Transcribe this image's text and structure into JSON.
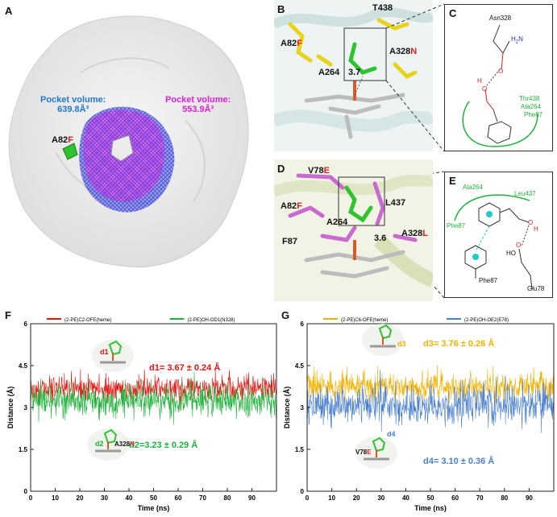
{
  "panels": {
    "A": {
      "label": "A",
      "pocket_blue": {
        "title": "Pocket volume:",
        "value": "639.8Å³",
        "color": "#1f78d1"
      },
      "pocket_magenta": {
        "title": "Pocket volume:",
        "value": "553.9Å³",
        "color": "#e020d8"
      },
      "mutation": {
        "base": "A82",
        "mut": "F"
      }
    },
    "B": {
      "label": "B",
      "residues": [
        {
          "base": "A82",
          "mut": "F"
        },
        {
          "base": "T438",
          "mut": ""
        },
        {
          "base": "A328",
          "mut": "N"
        },
        {
          "base": "A264",
          "mut": ""
        }
      ],
      "distance": "3.7"
    },
    "C": {
      "label": "C",
      "labels": {
        "asn": "Asn328",
        "nh2": "H",
        "nh2_sub": "2",
        "nh2_n": "N",
        "o": "O",
        "oh_o": "O",
        "oh_h": "H",
        "thr": "Thr438",
        "ala": "Ala264",
        "phe": "Phe87"
      }
    },
    "D": {
      "label": "D",
      "residues": [
        {
          "base": "V78",
          "mut": "E"
        },
        {
          "base": "A82",
          "mut": "F"
        },
        {
          "base": "A264",
          "mut": ""
        },
        {
          "base": "L437",
          "mut": ""
        },
        {
          "base": "F87",
          "mut": ""
        },
        {
          "base": "A328",
          "mut": "L"
        }
      ],
      "distance": "3.6"
    },
    "E": {
      "label": "E",
      "labels": {
        "ala": "Ala264",
        "leu": "Leu437",
        "phe_top": "Phe87",
        "phe_bot": "Phe87",
        "glu": "Glu78",
        "ho": "HO",
        "o1": "O",
        "o2": "O",
        "h": "H"
      }
    }
  },
  "chart_data": [
    {
      "panel": "F",
      "type": "line",
      "ylabel": "Distance (Å)",
      "xlabel": "Time (ns)",
      "xlim": [
        0,
        100
      ],
      "ylim": [
        0,
        6
      ],
      "xticks": [
        0,
        10,
        20,
        30,
        40,
        50,
        60,
        70,
        80,
        90
      ],
      "yticks": [
        0,
        1.5,
        3,
        4.5,
        6
      ],
      "legend": [
        {
          "name": "(2-PE)C2-OFE(heme)",
          "color": "#e8130f"
        },
        {
          "name": "(2-PE)OH-OD1(N328)",
          "color": "#1fb23c"
        }
      ],
      "series": [
        {
          "name": "(2-PE)C2-OFE(heme)",
          "mean": 3.67,
          "sd": 0.24,
          "color": "#e8130f"
        },
        {
          "name": "(2-PE)OH-OD1(N328)",
          "mean": 3.23,
          "sd": 0.29,
          "color": "#1fb23c"
        }
      ],
      "annotations": [
        {
          "text": "d1= 3.67 ± 0.24 Å",
          "color": "#e8130f"
        },
        {
          "text": "d2=3.23 ± 0.29 Å",
          "color": "#1fb23c"
        }
      ],
      "inset_labels": {
        "d1": "d1",
        "d2": "d2",
        "res": "A328",
        "res_mut": "N"
      }
    },
    {
      "panel": "G",
      "type": "line",
      "ylabel": "Distance (Å)",
      "xlabel": "Time (ns)",
      "xlim": [
        0,
        100
      ],
      "ylim": [
        0,
        6
      ],
      "xticks": [
        0,
        10,
        20,
        30,
        40,
        50,
        60,
        70,
        80,
        90
      ],
      "yticks": [
        0,
        1.5,
        3,
        4.5,
        6
      ],
      "legend": [
        {
          "name": "(2-PE)C6-OFE(heme)",
          "color": "#f2b300"
        },
        {
          "name": "(2-PE)OH-OE2(E78)",
          "color": "#4a7fd0"
        }
      ],
      "series": [
        {
          "name": "(2-PE)C6-OFE(heme)",
          "mean": 3.76,
          "sd": 0.26,
          "color": "#f2b300"
        },
        {
          "name": "(2-PE)OH-OE2(E78)",
          "mean": 3.1,
          "sd": 0.36,
          "color": "#4a7fd0"
        }
      ],
      "annotations": [
        {
          "text": "d3= 3.76 ± 0.26 Å",
          "color": "#f2b300"
        },
        {
          "text": "d4= 3.10 ± 0.36 Å",
          "color": "#4a7fd0"
        }
      ],
      "inset_labels": {
        "d3": "d3",
        "d4": "d4",
        "res": "V78",
        "res_mut": "E"
      }
    }
  ],
  "labels": {
    "F": "F",
    "G": "G"
  },
  "colors": {
    "mut_red": "#e0201a",
    "yellow_stick": "#e8d21c",
    "pink_stick": "#c86ad0",
    "green_ligand": "#2fc42f"
  }
}
